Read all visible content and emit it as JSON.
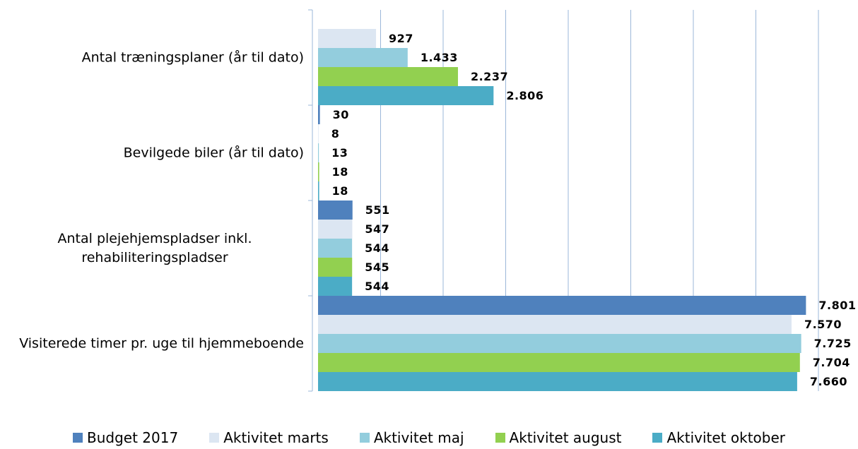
{
  "chart_data": {
    "type": "hbar",
    "categories": [
      "Antal træningsplaner (år til dato)",
      "Bevilgede biler (år til dato)",
      "Antal plejehjemspladser inkl. rehabiliteringspladser",
      "Visiterede timer pr. uge til hjemmeboende"
    ],
    "series": [
      {
        "name": "Budget 2017",
        "color": "#4f81bd",
        "values": [
          null,
          30,
          551,
          7801
        ],
        "value_labels": [
          null,
          "30",
          "551",
          "7.801"
        ]
      },
      {
        "name": "Aktivitet marts",
        "color": "#dce6f2",
        "values": [
          927,
          8,
          547,
          7570
        ],
        "value_labels": [
          "927",
          "8",
          "547",
          "7.570"
        ]
      },
      {
        "name": "Aktivitet maj",
        "color": "#93cddd",
        "values": [
          1433,
          13,
          544,
          7725
        ],
        "value_labels": [
          "1.433",
          "13",
          "544",
          "7.725"
        ]
      },
      {
        "name": "Aktivitet august",
        "color": "#92d050",
        "values": [
          2237,
          18,
          545,
          7704
        ],
        "value_labels": [
          "2.237",
          "18",
          "545",
          "7.704"
        ]
      },
      {
        "name": "Aktivitet oktober",
        "color": "#4bacc6",
        "values": [
          2806,
          18,
          544,
          7660
        ],
        "value_labels": [
          "2.806",
          "18",
          "544",
          "7.660"
        ]
      }
    ],
    "xlim": [
      0,
      8000
    ],
    "xticks": [
      0,
      1000,
      2000,
      3000,
      4000,
      5000,
      6000,
      7000,
      8000
    ],
    "grid": true,
    "legend": "bottom"
  }
}
